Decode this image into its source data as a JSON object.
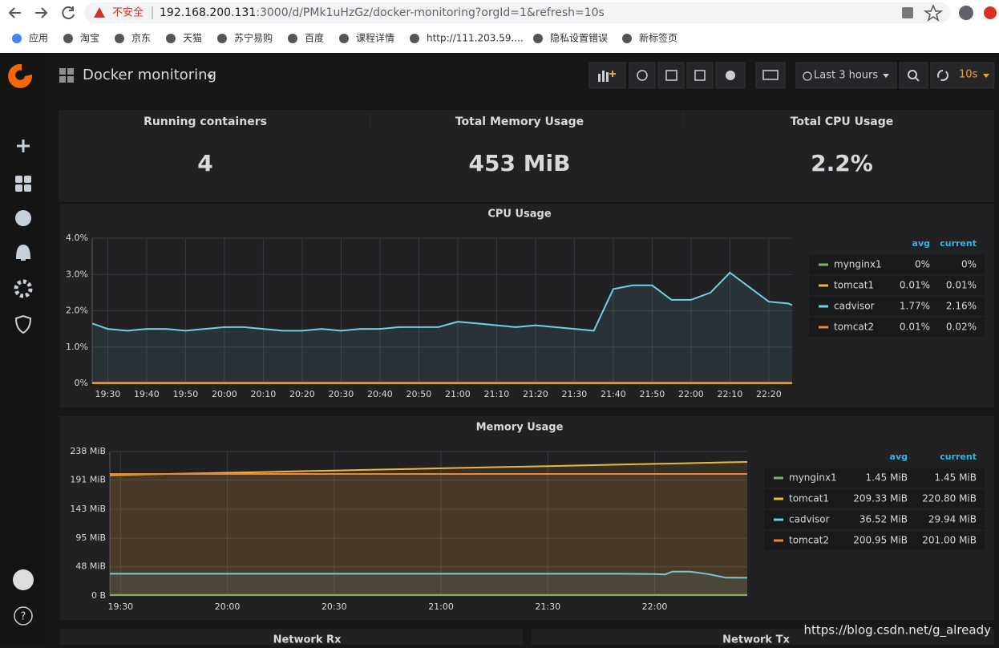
{
  "browser": {
    "warning": "不安全",
    "url_host": "192.168.200.131",
    "url_rest": ":3000/d/PMk1uHzGz/docker-monitoring?orgId=1&refresh=10s",
    "bookmarks": [
      "应用",
      "淘宝",
      "京东",
      "天猫",
      "苏宁易购",
      "百度",
      "课程详情",
      "http://111.203.59....",
      "隐私设置错误",
      "新标签页"
    ]
  },
  "dashboard": {
    "title": "Docker monitoring",
    "time_range": "Last 3 hours",
    "refresh": "10s"
  },
  "stats": [
    {
      "title": "Running containers",
      "value": "4"
    },
    {
      "title": "Total Memory Usage",
      "value": "453 MiB"
    },
    {
      "title": "Total CPU Usage",
      "value": "2.2%"
    }
  ],
  "cpu_chart": {
    "type": "line",
    "title": "CPU Usage",
    "x": [
      "19:26",
      "19:30",
      "19:35",
      "19:40",
      "19:45",
      "19:50",
      "19:55",
      "20:00",
      "20:05",
      "20:10",
      "20:15",
      "20:20",
      "20:25",
      "20:30",
      "20:35",
      "20:40",
      "20:45",
      "20:50",
      "20:55",
      "21:00",
      "21:05",
      "21:10",
      "21:15",
      "21:20",
      "21:25",
      "21:30",
      "21:35",
      "21:40",
      "21:45",
      "21:50",
      "21:55",
      "22:00",
      "22:05",
      "22:10",
      "22:15",
      "22:20",
      "22:25",
      "22:26"
    ],
    "xlim": [
      "19:26",
      "22:26"
    ],
    "xticks": [
      "19:30",
      "19:40",
      "19:50",
      "20:00",
      "20:10",
      "20:20",
      "20:30",
      "20:40",
      "20:50",
      "21:00",
      "21:10",
      "21:20",
      "21:30",
      "21:40",
      "21:50",
      "22:00",
      "22:10",
      "22:20"
    ],
    "ylim": [
      0,
      4
    ],
    "yticks": [
      {
        "value": 0,
        "label": "0%"
      },
      {
        "value": 1,
        "label": "1.0%"
      },
      {
        "value": 2,
        "label": "2.0%"
      },
      {
        "value": 3,
        "label": "3.0%"
      },
      {
        "value": 4,
        "label": "4.0%"
      }
    ],
    "legend_columns": [
      "avg",
      "current"
    ],
    "series": [
      {
        "name": "mynginx1",
        "color": "#7eb26d",
        "avg": "0%",
        "current": "0%",
        "values": [
          0,
          0,
          0,
          0,
          0,
          0,
          0,
          0,
          0,
          0,
          0,
          0,
          0,
          0,
          0,
          0,
          0,
          0,
          0,
          0,
          0,
          0,
          0,
          0,
          0,
          0,
          0,
          0,
          0,
          0,
          0,
          0,
          0,
          0,
          0,
          0,
          0,
          0
        ]
      },
      {
        "name": "tomcat1",
        "color": "#eab839",
        "avg": "0.01%",
        "current": "0.01%",
        "values": [
          0.01,
          0.01,
          0.01,
          0.01,
          0.01,
          0.01,
          0.01,
          0.01,
          0.01,
          0.01,
          0.01,
          0.01,
          0.01,
          0.01,
          0.01,
          0.01,
          0.01,
          0.01,
          0.01,
          0.01,
          0.01,
          0.01,
          0.01,
          0.01,
          0.01,
          0.01,
          0.01,
          0.01,
          0.01,
          0.01,
          0.01,
          0.01,
          0.01,
          0.01,
          0.01,
          0.01,
          0.01,
          0.01
        ]
      },
      {
        "name": "cadvisor",
        "color": "#6ed0e0",
        "avg": "1.77%",
        "current": "2.16%",
        "values": [
          1.65,
          1.5,
          1.45,
          1.5,
          1.5,
          1.45,
          1.5,
          1.55,
          1.55,
          1.5,
          1.45,
          1.45,
          1.5,
          1.45,
          1.5,
          1.5,
          1.55,
          1.55,
          1.55,
          1.7,
          1.65,
          1.6,
          1.55,
          1.6,
          1.55,
          1.5,
          1.45,
          2.6,
          2.7,
          2.7,
          2.3,
          2.3,
          2.5,
          3.05,
          2.65,
          2.25,
          2.2,
          2.16
        ]
      },
      {
        "name": "tomcat2",
        "color": "#ef843c",
        "avg": "0.01%",
        "current": "0.02%",
        "values": [
          0.02,
          0.02,
          0.02,
          0.02,
          0.02,
          0.02,
          0.02,
          0.02,
          0.02,
          0.02,
          0.02,
          0.02,
          0.02,
          0.02,
          0.02,
          0.02,
          0.02,
          0.02,
          0.02,
          0.02,
          0.02,
          0.02,
          0.02,
          0.02,
          0.02,
          0.02,
          0.02,
          0.02,
          0.02,
          0.02,
          0.02,
          0.02,
          0.02,
          0.02,
          0.02,
          0.02,
          0.02,
          0.02
        ]
      }
    ]
  },
  "memory_chart": {
    "type": "line",
    "title": "Memory Usage",
    "x": [
      "19:27",
      "19:30",
      "19:40",
      "19:50",
      "20:00",
      "20:10",
      "20:20",
      "20:30",
      "20:40",
      "20:50",
      "21:00",
      "21:10",
      "21:20",
      "21:30",
      "21:40",
      "21:50",
      "22:00",
      "22:03",
      "22:05",
      "22:10",
      "22:15",
      "22:20",
      "22:26"
    ],
    "xlim": [
      "19:27",
      "22:26"
    ],
    "xticks": [
      "19:30",
      "20:00",
      "20:30",
      "21:00",
      "21:30",
      "22:00"
    ],
    "ylim": [
      0,
      238
    ],
    "yticks": [
      {
        "value": 0,
        "label": "0 B"
      },
      {
        "value": 48,
        "label": "48 MiB"
      },
      {
        "value": 95,
        "label": "95 MiB"
      },
      {
        "value": 143,
        "label": "143 MiB"
      },
      {
        "value": 191,
        "label": "191 MiB"
      },
      {
        "value": 238,
        "label": "238 MiB"
      }
    ],
    "legend_columns": [
      "avg",
      "current"
    ],
    "series": [
      {
        "name": "mynginx1",
        "color": "#7eb26d",
        "avg": "1.45 MiB",
        "current": "1.45 MiB",
        "values": [
          1.45,
          1.45,
          1.45,
          1.45,
          1.45,
          1.45,
          1.45,
          1.45,
          1.45,
          1.45,
          1.45,
          1.45,
          1.45,
          1.45,
          1.45,
          1.45,
          1.45,
          1.45,
          1.45,
          1.45,
          1.45,
          1.45,
          1.45
        ]
      },
      {
        "name": "tomcat1",
        "color": "#eab839",
        "avg": "209.33 MiB",
        "current": "220.80 MiB",
        "values": [
          199,
          199.4,
          200.6,
          201.8,
          203.0,
          204.2,
          205.5,
          206.7,
          207.9,
          209.1,
          210.3,
          211.5,
          212.8,
          214.0,
          215.2,
          216.4,
          217.6,
          218.0,
          218.2,
          218.8,
          219.5,
          220.1,
          220.8
        ]
      },
      {
        "name": "cadvisor",
        "color": "#6ed0e0",
        "avg": "36.52 MiB",
        "current": "29.94 MiB",
        "values": [
          36.5,
          36.5,
          36.5,
          36.5,
          36.5,
          36.5,
          36.5,
          36.5,
          36.5,
          36.5,
          36.5,
          36.5,
          36.5,
          36.5,
          36.5,
          36.5,
          36,
          35.5,
          40,
          40,
          36,
          30,
          29.94
        ]
      },
      {
        "name": "tomcat2",
        "color": "#ef843c",
        "avg": "200.95 MiB",
        "current": "201.00 MiB",
        "values": [
          201,
          201,
          201,
          201,
          201,
          201,
          201,
          201,
          201,
          201,
          201,
          201,
          201,
          201,
          201,
          201,
          201,
          201,
          201,
          201,
          201,
          201,
          201
        ]
      }
    ]
  },
  "bottom_panels": [
    "Network Rx",
    "Network Tx"
  ],
  "watermark": "https://blog.csdn.net/g_already"
}
